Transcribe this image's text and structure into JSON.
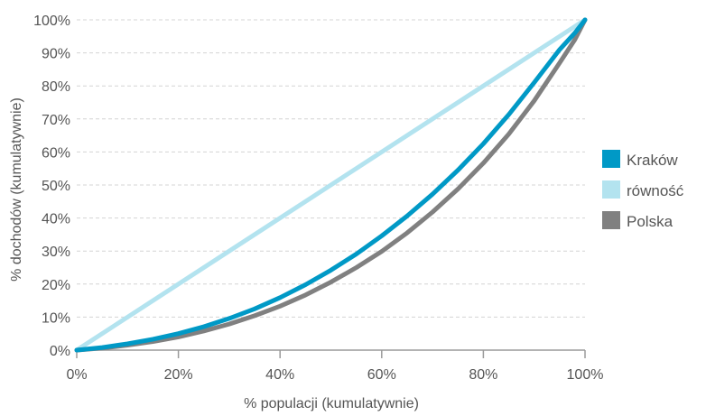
{
  "chart_data": {
    "type": "line",
    "xlabel": "% populacji (kumulatywnie)",
    "ylabel": "% dochodów (kumulatywnie)",
    "xlim": [
      0,
      100
    ],
    "ylim": [
      0,
      100
    ],
    "x_ticks": [
      "0%",
      "20%",
      "40%",
      "60%",
      "80%",
      "100%"
    ],
    "y_ticks": [
      "0%",
      "10%",
      "20%",
      "30%",
      "40%",
      "50%",
      "60%",
      "70%",
      "80%",
      "90%",
      "100%"
    ],
    "grid": "horizontal-dashed",
    "legend_position": "right",
    "series": [
      {
        "name": "Kraków",
        "color": "#0099c6",
        "x": [
          0,
          5,
          10,
          15,
          20,
          25,
          30,
          35,
          40,
          45,
          50,
          55,
          60,
          65,
          70,
          75,
          80,
          85,
          90,
          95,
          98,
          100
        ],
        "y": [
          0,
          0.8,
          1.9,
          3.3,
          5.0,
          7.1,
          9.6,
          12.5,
          15.9,
          19.8,
          24.2,
          29.1,
          34.6,
          40.6,
          47.2,
          54.5,
          62.5,
          71.3,
          81.0,
          91.0,
          96.0,
          100
        ]
      },
      {
        "name": "równość",
        "color": "#b3e3ef",
        "x": [
          0,
          100
        ],
        "y": [
          0,
          100
        ]
      },
      {
        "name": "Polska",
        "color": "#808080",
        "x": [
          0,
          5,
          10,
          15,
          20,
          25,
          30,
          35,
          40,
          45,
          50,
          55,
          60,
          65,
          70,
          75,
          80,
          85,
          90,
          95,
          98,
          100
        ],
        "y": [
          0,
          0.6,
          1.5,
          2.6,
          4.0,
          5.8,
          7.9,
          10.4,
          13.3,
          16.7,
          20.6,
          25.0,
          29.9,
          35.5,
          41.8,
          48.8,
          56.6,
          65.4,
          75.5,
          87.0,
          94.0,
          100
        ]
      }
    ]
  }
}
